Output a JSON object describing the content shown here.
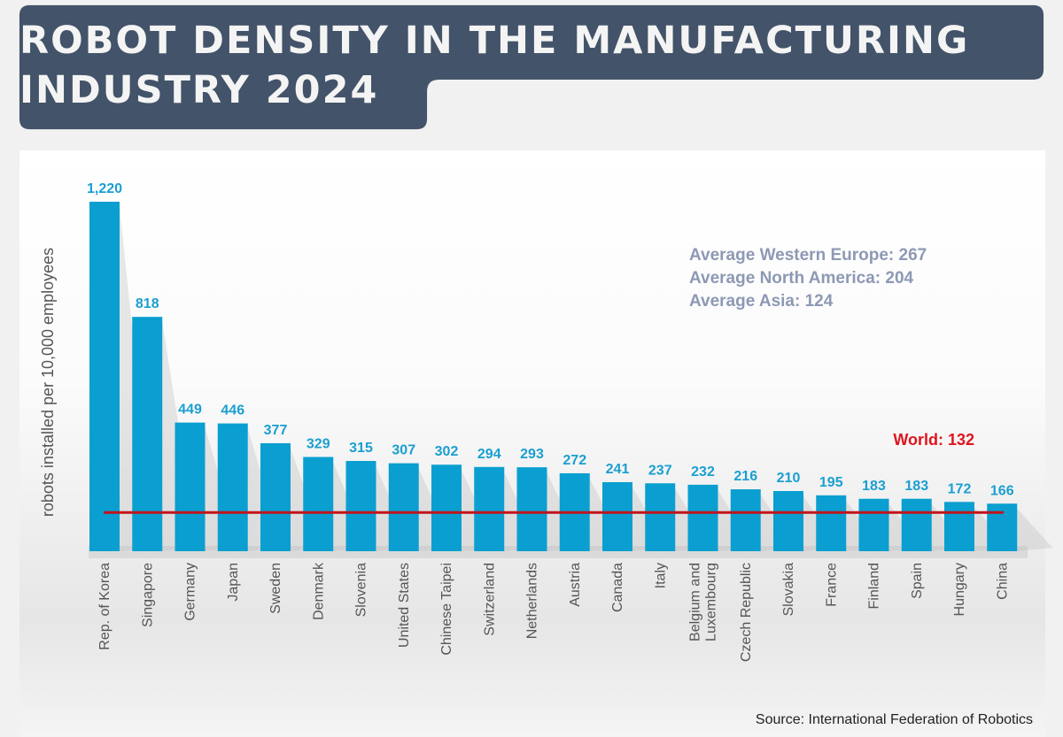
{
  "chart_data": {
    "type": "bar",
    "title": "ROBOT DENSITY IN THE MANUFACTURING INDUSTRY 2024",
    "ylabel": "robots installed per 10,000 employees",
    "xlabel": "",
    "categories": [
      "Rep. of Korea",
      "Singapore",
      "Germany",
      "Japan",
      "Sweden",
      "Denmark",
      "Slovenia",
      "United States",
      "Chinese Taipei",
      "Switzerland",
      "Netherlands",
      "Austria",
      "Canada",
      "Italy",
      "Belgium and Luxembourg",
      "Czech Republic",
      "Slovakia",
      "France",
      "Finland",
      "Spain",
      "Hungary",
      "China"
    ],
    "values": [
      1220,
      818,
      449,
      446,
      377,
      329,
      315,
      307,
      302,
      294,
      293,
      272,
      241,
      237,
      232,
      216,
      210,
      195,
      183,
      183,
      172,
      166
    ],
    "value_labels": [
      "1,220",
      "818",
      "449",
      "446",
      "377",
      "329",
      "315",
      "307",
      "302",
      "294",
      "293",
      "272",
      "241",
      "237",
      "232",
      "216",
      "210",
      "195",
      "183",
      "183",
      "172",
      "166"
    ],
    "reference_line": {
      "label": "World: 132",
      "value": 132,
      "color": "#c0141c"
    },
    "annotations": [
      "Average Western Europe: 267",
      "Average North America: 204",
      "Average Asia: 124"
    ],
    "source": "Source: International Federation of Robotics",
    "bar_color": "#0a9fd0",
    "label_color": "#1a9fd0",
    "title_bg": "#435369",
    "grid": false
  }
}
